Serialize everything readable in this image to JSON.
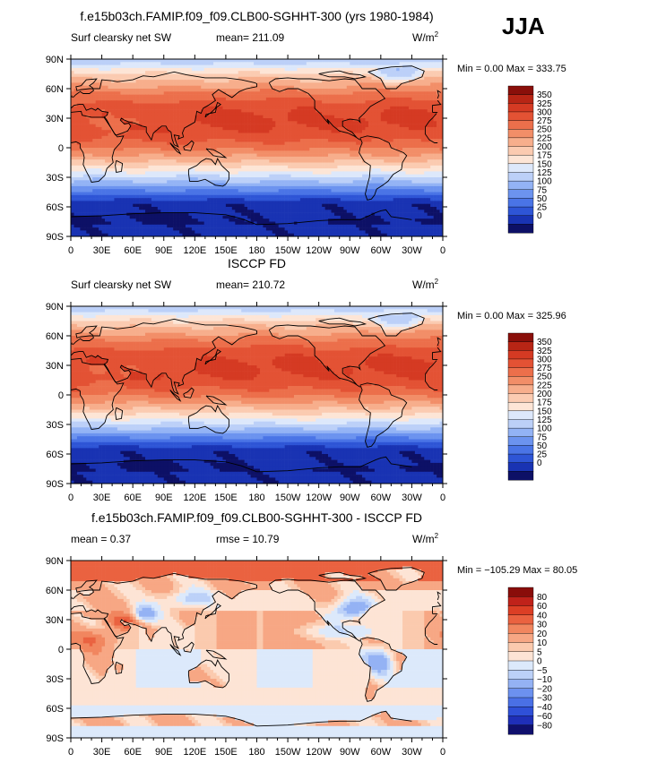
{
  "season": "JJA",
  "colors": {
    "sequential": [
      "#0d1066",
      "#1933b3",
      "#2e55d6",
      "#4a74e6",
      "#6c93ef",
      "#93b3f5",
      "#bcd0f8",
      "#dde8fb",
      "#fde5d6",
      "#fbcbb1",
      "#f7ae8c",
      "#f28e68",
      "#ec6f4b",
      "#e35234",
      "#d53a23",
      "#b82515",
      "#8a0f0a"
    ],
    "diverging": [
      "#10106d",
      "#1f2fb8",
      "#2f50d8",
      "#4a70e6",
      "#6c91ef",
      "#94b2f4",
      "#bcd1f8",
      "#dce9fb",
      "#fde4d5",
      "#fbcaae",
      "#f7a784",
      "#f1865f",
      "#ea6240",
      "#dc3f25",
      "#c0221a",
      "#8a0d0a"
    ]
  },
  "chart_data": [
    {
      "type": "heatmap",
      "title": "f.e15b03ch.FAMIP.f09_f09.CLB00-SGHHT-300 (yrs 1980-1984)",
      "variable": "Surf clearsky net SW",
      "stat_text": "mean= 211.09",
      "units": "W/m",
      "units_sup": "2",
      "minmax_text": "Min =    0.00 Max = 333.75",
      "x_ticks": [
        "0",
        "30E",
        "60E",
        "90E",
        "120E",
        "150E",
        "180",
        "150W",
        "120W",
        "90W",
        "60W",
        "30W",
        "0"
      ],
      "y_ticks": [
        "90N",
        "60N",
        "30N",
        "0",
        "30S",
        "60S",
        "90S"
      ],
      "colorbar_labels": [
        "350",
        "325",
        "300",
        "275",
        "250",
        "225",
        "200",
        "175",
        "150",
        "125",
        "100",
        "75",
        "50",
        "25",
        "0"
      ],
      "palette": "sequential"
    },
    {
      "type": "heatmap",
      "title": "ISCCP FD",
      "variable": "Surf clearsky net SW",
      "stat_text": "mean= 210.72",
      "units": "W/m",
      "units_sup": "2",
      "minmax_text": "Min =    0.00 Max = 325.96",
      "x_ticks": [
        "0",
        "30E",
        "60E",
        "90E",
        "120E",
        "150E",
        "180",
        "150W",
        "120W",
        "90W",
        "60W",
        "30W",
        "0"
      ],
      "y_ticks": [
        "90N",
        "60N",
        "30N",
        "0",
        "30S",
        "60S",
        "90S"
      ],
      "colorbar_labels": [
        "350",
        "325",
        "300",
        "275",
        "250",
        "225",
        "200",
        "175",
        "150",
        "125",
        "100",
        "75",
        "50",
        "25",
        "0"
      ],
      "palette": "sequential"
    },
    {
      "type": "heatmap",
      "title": "f.e15b03ch.FAMIP.f09_f09.CLB00-SGHHT-300 - ISCCP FD",
      "stat_text": "mean =    0.37",
      "stat_text2": "rmse =   10.79",
      "units": "W/m",
      "units_sup": "2",
      "minmax_text": "Min = −105.29 Max =  80.05",
      "x_ticks": [
        "0",
        "30E",
        "60E",
        "90E",
        "120E",
        "150E",
        "180",
        "150W",
        "120W",
        "90W",
        "60W",
        "30W",
        "0"
      ],
      "y_ticks": [
        "90N",
        "60N",
        "30N",
        "0",
        "30S",
        "60S",
        "90S"
      ],
      "colorbar_labels": [
        "80",
        "60",
        "40",
        "30",
        "20",
        "10",
        "5",
        "0",
        "−5",
        "−10",
        "−20",
        "−30",
        "−40",
        "−60",
        "−80"
      ],
      "palette": "diverging"
    }
  ]
}
